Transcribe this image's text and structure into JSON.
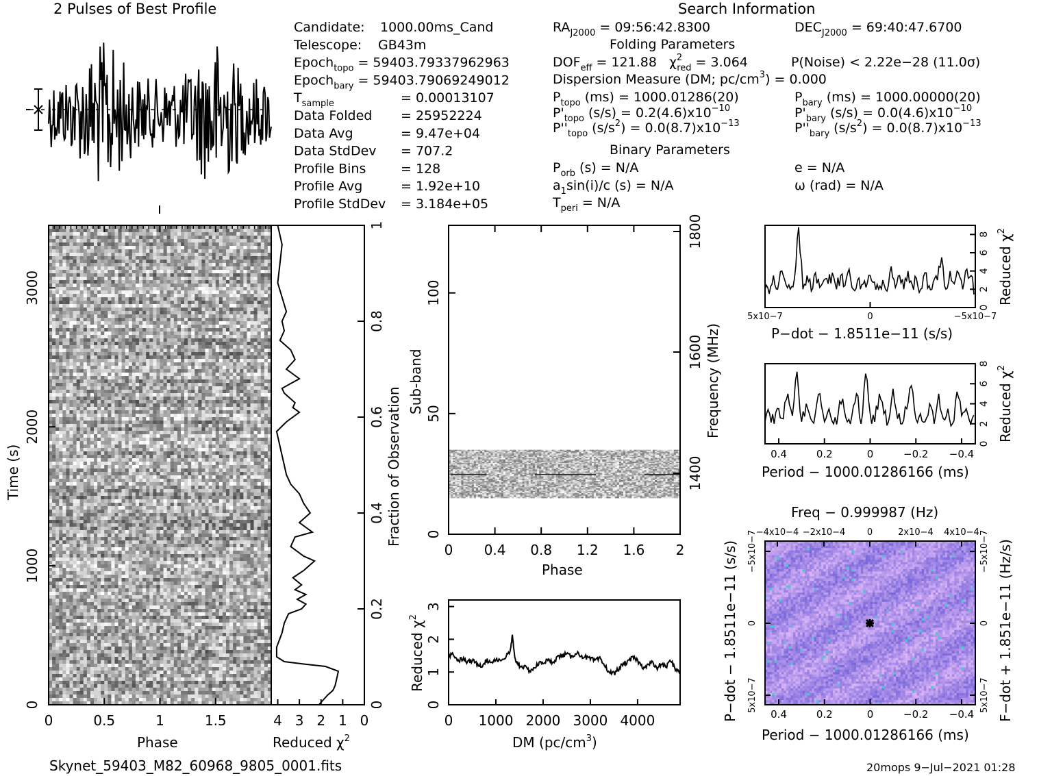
{
  "profile": {
    "title": "2 Pulses of Best Profile"
  },
  "candidate_info": [
    {
      "label": "Candidate:",
      "value": "1000.00ms_Cand"
    },
    {
      "label": "Telescope:",
      "value": "GB43m"
    },
    {
      "label": "Epoch",
      "sub": "topo",
      "value": "= 59403.79337962963"
    },
    {
      "label": "Epoch",
      "sub": "bary",
      "value": "= 59403.79069249012"
    },
    {
      "label": "T",
      "sub": "sample",
      "value": "=  0.00013107"
    },
    {
      "label": "Data Folded",
      "value": "=  25952224"
    },
    {
      "label": "Data Avg",
      "value": "=  9.47e+04"
    },
    {
      "label": "Data StdDev",
      "value": "=  707.2"
    },
    {
      "label": "Profile Bins",
      "value": "=  128"
    },
    {
      "label": "Profile Avg",
      "value": "=  1.92e+10"
    },
    {
      "label": "Profile StdDev",
      "value": "=  3.184e+05"
    }
  ],
  "search_info": {
    "title": "Search Information",
    "ra": {
      "label": "RA",
      "sub": "J2000",
      "value": "= 09:56:42.8300"
    },
    "dec": {
      "label": "DEC",
      "sub": "J2000",
      "value": "= 69:40:47.6700"
    },
    "folding_title": "Folding Parameters",
    "dof": "DOF",
    "dof_sub": "eff",
    "dof_value": "= 121.88",
    "chi2": "χ",
    "chi2_sub": "red",
    "chi2_value": "= 3.064",
    "noise": "P(Noise) < 2.22e−28   (11.0σ)",
    "dm_line": "Dispersion Measure (DM; pc/cm",
    "dm_line_end": ") = 0.000",
    "p_topo": {
      "label": "P",
      "sub": "topo",
      "value": "(ms) =  1000.01286(20)"
    },
    "p_bary": {
      "label": "P",
      "sub": "bary",
      "value": "(ms) =  1000.00000(20)"
    },
    "pd_topo": {
      "label": "P'",
      "sub": "topo",
      "value": "(s/s) =  0.2(4.6)x10",
      "exp": "−10"
    },
    "pd_bary": {
      "label": "P'",
      "sub": "bary",
      "value": "(s/s) = 0.0(4.6)x10",
      "exp": "−10"
    },
    "pdd_topo": {
      "label": "P''",
      "sub": "topo",
      "value": "(s/s",
      "value2": ") = 0.0(8.7)x10",
      "exp": "−13"
    },
    "pdd_bary": {
      "label": "P''",
      "sub": "bary",
      "value": "(s/s",
      "value2": ") = 0.0(8.7)x10",
      "exp": "−13"
    },
    "binary_title": "Binary Parameters",
    "porb": {
      "label": "P",
      "sub": "orb",
      "value": "(s) = N/A"
    },
    "ecc": "e = N/A",
    "asini": {
      "label": "a",
      "sub": "1",
      "value": "sin(i)/c (s) = N/A"
    },
    "omega": "ω (rad) = N/A",
    "tperi": {
      "label": "T",
      "sub": "peri",
      "value": "= N/A"
    }
  },
  "footer": {
    "filename": "Skynet_59403_M82_60968_9805_0001.fits",
    "stamp": "20mops   9−Jul−2021 01:28"
  },
  "chart_data": [
    {
      "id": "time-phase",
      "type": "heatmap",
      "xlabel": "Phase",
      "ylabel": "Time (s)",
      "xlim": [
        0,
        2
      ],
      "ylim": [
        0,
        3450
      ],
      "xticks": [
        "0",
        "0.5",
        "1",
        "1.5"
      ],
      "yticks": [
        "0",
        "1000",
        "2000",
        "3000"
      ],
      "right_axis_label": "Fraction of Observation",
      "right_ticks": [
        "0",
        "0.2",
        "0.4",
        "0.6",
        "0.8",
        "1"
      ],
      "colormap": "grayscale"
    },
    {
      "id": "time-chi2",
      "type": "line",
      "xlabel": "Reduced χ²",
      "xticks": [
        "4",
        "3",
        "2",
        "1",
        "0"
      ],
      "xlim": [
        4.3,
        0
      ],
      "ylim": [
        0,
        1
      ],
      "x": [
        2.1,
        1.7,
        1.45,
        1.35,
        1.3,
        1.25,
        1.2,
        1.8,
        2.8,
        3.7,
        4.05,
        4.05,
        3.8,
        3.7,
        3.5,
        2.9,
        2.7,
        3.1,
        2.7,
        3.2,
        2.9,
        3.3,
        2.8,
        2.3,
        2.8,
        3.4,
        3.2,
        2.4,
        3.0,
        2.5,
        2.8,
        3.0,
        3.4,
        3.6,
        3.7,
        3.8,
        4.05,
        3.6,
        3.0,
        3.3,
        3.2,
        3.7,
        3.8,
        3.0,
        3.6,
        3.2,
        3.4,
        3.9,
        3.7,
        3.8,
        3.6,
        3.8,
        4.0,
        3.9,
        3.8,
        4.0
      ],
      "y": [
        0,
        0.02,
        0.03,
        0.04,
        0.05,
        0.06,
        0.07,
        0.08,
        0.085,
        0.09,
        0.1,
        0.12,
        0.15,
        0.17,
        0.19,
        0.2,
        0.21,
        0.22,
        0.23,
        0.24,
        0.25,
        0.265,
        0.28,
        0.3,
        0.31,
        0.33,
        0.35,
        0.36,
        0.38,
        0.4,
        0.42,
        0.44,
        0.46,
        0.48,
        0.5,
        0.52,
        0.57,
        0.59,
        0.61,
        0.62,
        0.63,
        0.65,
        0.66,
        0.68,
        0.7,
        0.72,
        0.74,
        0.76,
        0.78,
        0.8,
        0.82,
        0.85,
        0.88,
        0.92,
        0.96,
        1.0
      ],
      "series_note": ""
    },
    {
      "id": "subband-phase",
      "type": "heatmap",
      "xlabel": "Phase",
      "ylabel": "Sub-band",
      "right_axis_label": "Frequency (MHz)",
      "xlim": [
        0,
        2
      ],
      "ylim": [
        0,
        128
      ],
      "xticks": [
        "0",
        "0.4",
        "0.8",
        "1.2",
        "1.6",
        "2"
      ],
      "yticks": [
        "0",
        "50",
        "100"
      ],
      "right_ticks": [
        "1400",
        "1600",
        "1800"
      ],
      "band_range": [
        15,
        35
      ],
      "colormap": "grayscale"
    },
    {
      "id": "dm-chi2",
      "type": "line",
      "xlabel": "DM (pc/cm³)",
      "ylabel": "Reduced χ²",
      "xlim": [
        0,
        4900
      ],
      "ylim": [
        0,
        3.2
      ],
      "xticks": [
        "0",
        "1000",
        "2000",
        "3000",
        "4000"
      ],
      "yticks": [
        "0",
        "1",
        "2",
        "3"
      ],
      "x": [
        0,
        100,
        200,
        300,
        400,
        500,
        600,
        700,
        800,
        900,
        1000,
        1100,
        1200,
        1300,
        1350,
        1400,
        1450,
        1500,
        1600,
        1700,
        1800,
        1900,
        2000,
        2100,
        2200,
        2300,
        2400,
        2500,
        2600,
        2700,
        2800,
        2900,
        3000,
        3100,
        3200,
        3300,
        3400,
        3500,
        3600,
        3700,
        3800,
        3900,
        4000,
        4100,
        4200,
        4300,
        4400,
        4500,
        4600,
        4700,
        4800,
        4900
      ],
      "y": [
        1.5,
        1.55,
        1.35,
        1.4,
        1.3,
        1.35,
        1.25,
        1.2,
        1.35,
        1.3,
        1.4,
        1.35,
        1.45,
        1.6,
        2.1,
        1.4,
        1.3,
        1.2,
        1.15,
        1.05,
        1.1,
        1.25,
        1.3,
        1.35,
        1.3,
        1.45,
        1.5,
        1.55,
        1.45,
        1.6,
        1.5,
        1.45,
        1.4,
        1.35,
        1.4,
        1.2,
        1.0,
        0.95,
        1.1,
        1.25,
        1.3,
        1.45,
        1.35,
        1.15,
        1.2,
        1.3,
        1.1,
        1.25,
        1.15,
        1.35,
        1.1,
        1.0
      ]
    },
    {
      "id": "pdot-chi2",
      "type": "line",
      "xlabel": "P−dot − 1.8511e−11 (s/s)",
      "ylabel": "Reduced χ²",
      "xticks": [
        "5x10−7",
        "0",
        "−5x10−7"
      ],
      "yticks": [
        "0",
        "2",
        "4",
        "6",
        "8"
      ],
      "xlim": [
        5e-07,
        -5e-07
      ],
      "ylim": [
        0,
        9
      ],
      "x": [
        5e-07,
        4.8e-07,
        4.6e-07,
        4.4e-07,
        4.2e-07,
        4e-07,
        3.8e-07,
        3.6e-07,
        3.4e-07,
        3.2e-07,
        3e-07,
        2.8e-07,
        2.6e-07,
        2.4e-07,
        2.2e-07,
        2e-07,
        1.8e-07,
        1.6e-07,
        1.4e-07,
        1.2e-07,
        1e-07,
        8e-08,
        6e-08,
        4e-08,
        2e-08,
        0,
        -2e-08,
        -4e-08,
        -6e-08,
        -8e-08,
        -1e-07,
        -1.2e-07,
        -1.4e-07,
        -1.6e-07,
        -1.8e-07,
        -2e-07,
        -2.2e-07,
        -2.4e-07,
        -2.6e-07,
        -2.8e-07,
        -3e-07,
        -3.2e-07,
        -3.4e-07,
        -3.6e-07,
        -3.8e-07,
        -4e-07,
        -4.2e-07,
        -4.4e-07,
        -4.6e-07,
        -4.8e-07,
        -5e-07
      ],
      "y": [
        2.0,
        1.5,
        3.5,
        2.0,
        4.0,
        2.5,
        2.0,
        3.2,
        8.8,
        2.0,
        3.5,
        1.8,
        3.8,
        2.2,
        3.0,
        2.6,
        3.8,
        2.0,
        3.5,
        2.4,
        4.2,
        2.0,
        3.0,
        2.5,
        2.2,
        3.5,
        2.8,
        2.0,
        3.0,
        1.8,
        4.5,
        2.2,
        3.5,
        2.0,
        4.0,
        2.5,
        3.2,
        2.0,
        3.8,
        2.4,
        2.8,
        3.0,
        5.5,
        2.0,
        4.0,
        2.6,
        3.8,
        2.0,
        4.2,
        3.5,
        1.5
      ]
    },
    {
      "id": "period-chi2",
      "type": "line",
      "xlabel": "Period − 1000.01286166 (ms)",
      "ylabel": "Reduced χ²",
      "xticks": [
        "0.4",
        "0.2",
        "0",
        "−0.2",
        "−0.4"
      ],
      "yticks": [
        "0",
        "2",
        "4",
        "6",
        "8"
      ],
      "xlim": [
        0.46,
        -0.46
      ],
      "ylim": [
        0,
        8
      ],
      "x": [
        0.46,
        0.44,
        0.42,
        0.4,
        0.38,
        0.36,
        0.34,
        0.32,
        0.3,
        0.28,
        0.26,
        0.24,
        0.22,
        0.2,
        0.18,
        0.16,
        0.14,
        0.12,
        0.1,
        0.08,
        0.06,
        0.04,
        0.02,
        0,
        -0.02,
        -0.04,
        -0.06,
        -0.08,
        -0.1,
        -0.12,
        -0.14,
        -0.16,
        -0.18,
        -0.2,
        -0.22,
        -0.24,
        -0.26,
        -0.28,
        -0.3,
        -0.32,
        -0.34,
        -0.36,
        -0.38,
        -0.4,
        -0.42,
        -0.44,
        -0.46
      ],
      "y": [
        2.2,
        3.0,
        2.0,
        3.5,
        2.5,
        5.0,
        2.8,
        7.2,
        2.2,
        4.0,
        2.5,
        3.0,
        5.0,
        2.2,
        3.5,
        2.0,
        3.0,
        4.5,
        2.2,
        2.8,
        5.0,
        2.0,
        7.0,
        3.0,
        2.2,
        5.0,
        3.0,
        2.2,
        5.5,
        2.5,
        2.0,
        3.5,
        5.8,
        2.5,
        3.0,
        2.2,
        4.0,
        2.0,
        5.0,
        2.5,
        3.5,
        2.0,
        5.2,
        2.8,
        3.5,
        2.0,
        3.0
      ]
    },
    {
      "id": "period-pdot",
      "type": "heatmap",
      "title": "Freq − 0.999987 (Hz)",
      "xlabel": "Period − 1000.01286166 (ms)",
      "ylabel": "P−dot − 1.8511e−11 (s/s)",
      "right_axis_label": "F−dot + 1.851e−11 (Hz/s)",
      "xticks": [
        "0.4",
        "0.2",
        "0",
        "−0.2",
        "−0.4"
      ],
      "top_ticks": [
        "−4x10−4",
        "−2x10−4",
        "0",
        "2x10−4",
        "4x10−4"
      ],
      "yticks": [
        "5x10−7",
        "0",
        "−5x10−7"
      ],
      "right_ticks": [
        "−5x10−7",
        "0",
        "5x10−7"
      ],
      "colormap": "purple-blue",
      "marker": [
        0,
        0
      ]
    }
  ]
}
